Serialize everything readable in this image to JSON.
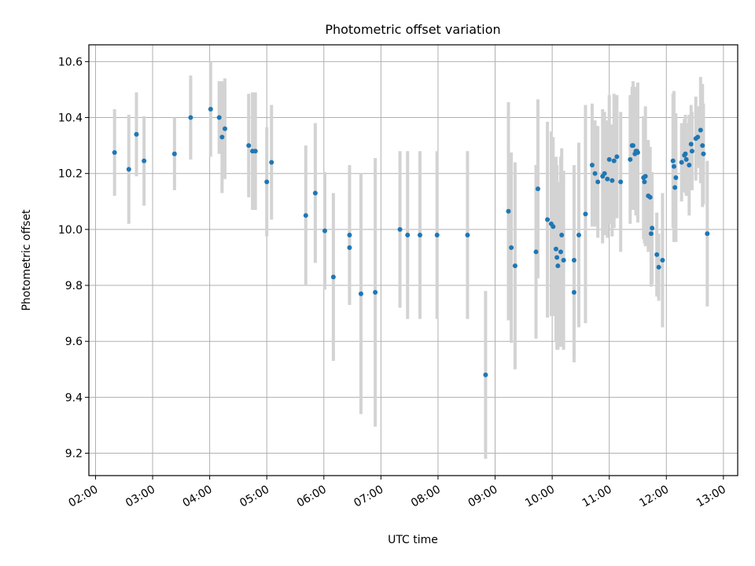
{
  "chart_data": {
    "type": "scatter",
    "title": "Photometric offset variation",
    "xlabel": "UTC time",
    "ylabel": "Photometric offset",
    "x_ticks": [
      "02:00",
      "03:00",
      "04:00",
      "05:00",
      "06:00",
      "07:00",
      "08:00",
      "09:00",
      "10:00",
      "11:00",
      "12:00",
      "13:00"
    ],
    "y_ticks": [
      "9.2",
      "9.4",
      "9.6",
      "9.8",
      "10.0",
      "10.2",
      "10.4",
      "10.6"
    ],
    "xlim": [
      "01:53",
      "13:15"
    ],
    "ylim": [
      9.12,
      10.66
    ],
    "grid": true,
    "colors": {
      "points": "#1f77b4",
      "error_bars": "#d3d3d3",
      "grid": "#b0b0b0"
    },
    "series": [
      {
        "x": [
          "02:20",
          "02:35",
          "02:43",
          "02:51",
          "03:23",
          "03:40",
          "04:01",
          "04:10",
          "04:13",
          "04:16",
          "04:41",
          "04:45",
          "04:48",
          "05:00",
          "05:05",
          "05:41",
          "05:51",
          "06:01",
          "06:10",
          "06:27",
          "06:27",
          "06:39",
          "06:54",
          "07:20",
          "07:28",
          "07:41",
          "07:59",
          "08:31",
          "08:50",
          "09:14",
          "09:17",
          "09:21",
          "09:43",
          "09:45",
          "09:55",
          "09:59",
          "10:01",
          "10:04",
          "10:05",
          "10:06",
          "10:09",
          "10:10",
          "10:12",
          "10:23",
          "10:23",
          "10:28",
          "10:35",
          "10:42",
          "10:45",
          "10:48",
          "10:53",
          "10:55",
          "10:58",
          "11:00",
          "11:03",
          "11:05",
          "11:08",
          "11:12",
          "11:22",
          "11:24",
          "11:25",
          "11:27",
          "11:28",
          "11:29",
          "11:30",
          "11:36",
          "11:37",
          "11:38",
          "11:41",
          "11:43",
          "11:44",
          "11:45",
          "11:50",
          "11:52",
          "11:56",
          "12:07",
          "12:08",
          "12:09",
          "12:10",
          "12:16",
          "12:19",
          "12:20",
          "12:21",
          "12:24",
          "12:26",
          "12:27",
          "12:31",
          "12:33",
          "12:36",
          "12:38",
          "12:39",
          "12:43"
        ],
        "y": [
          10.275,
          10.215,
          10.34,
          10.245,
          10.27,
          10.4,
          10.43,
          10.4,
          10.33,
          10.36,
          10.3,
          10.28,
          10.28,
          10.17,
          10.24,
          10.05,
          10.13,
          9.995,
          9.83,
          9.98,
          9.935,
          9.77,
          9.775,
          10.0,
          9.98,
          9.98,
          9.98,
          9.98,
          9.48,
          10.065,
          9.935,
          9.87,
          9.92,
          10.145,
          10.035,
          10.02,
          10.01,
          9.93,
          9.9,
          9.87,
          9.92,
          9.98,
          9.89,
          9.775,
          9.89,
          9.98,
          10.055,
          10.23,
          10.2,
          10.17,
          10.19,
          10.2,
          10.18,
          10.25,
          10.175,
          10.245,
          10.26,
          10.17,
          10.25,
          10.3,
          10.3,
          10.27,
          10.28,
          10.28,
          10.275,
          10.185,
          10.17,
          10.19,
          10.12,
          10.115,
          9.985,
          10.005,
          9.91,
          9.865,
          9.89,
          10.245,
          10.225,
          10.15,
          10.185,
          10.24,
          10.265,
          10.27,
          10.25,
          10.23,
          10.305,
          10.28,
          10.325,
          10.33,
          10.355,
          10.3,
          10.27,
          9.985
        ],
        "yerr": [
          0.155,
          0.195,
          0.15,
          0.16,
          0.13,
          0.15,
          0.17,
          0.13,
          0.2,
          0.18,
          0.185,
          0.21,
          0.21,
          0.195,
          0.205,
          0.25,
          0.25,
          0.21,
          0.3,
          0.25,
          0.2,
          0.43,
          0.48,
          0.28,
          0.3,
          0.3,
          0.3,
          0.3,
          0.3,
          0.39,
          0.34,
          0.37,
          0.31,
          0.32,
          0.35,
          0.33,
          0.32,
          0.33,
          0.33,
          0.3,
          0.34,
          0.31,
          0.32,
          0.25,
          0.34,
          0.33,
          0.39,
          0.22,
          0.19,
          0.2,
          0.24,
          0.22,
          0.21,
          0.23,
          0.2,
          0.24,
          0.22,
          0.25,
          0.23,
          0.21,
          0.23,
          0.19,
          0.23,
          0.21,
          0.25,
          0.22,
          0.22,
          0.25,
          0.2,
          0.18,
          0.19,
          0.2,
          0.15,
          0.12,
          0.24,
          0.24,
          0.27,
          0.17,
          0.23,
          0.14,
          0.13,
          0.14,
          0.13,
          0.18,
          0.14,
          0.14,
          0.15,
          0.11,
          0.19,
          0.22,
          0.18,
          0.26
        ]
      }
    ]
  }
}
